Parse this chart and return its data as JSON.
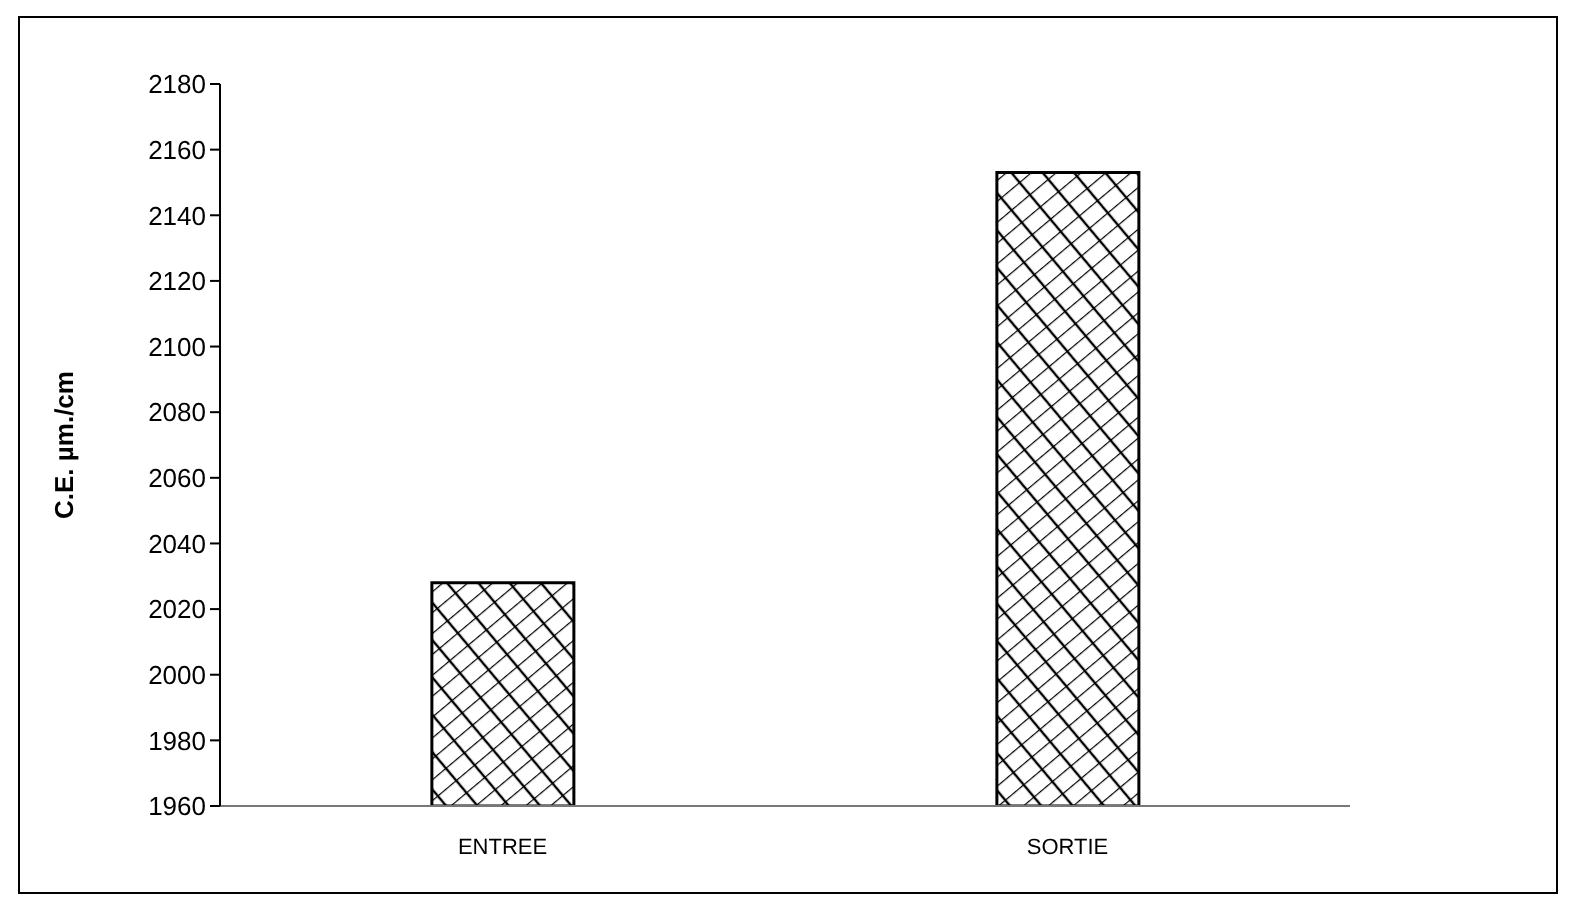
{
  "chart_data": {
    "type": "bar",
    "ylabel": "C.E. µm./cm",
    "categories": [
      "ENTREE",
      "SORTIE"
    ],
    "values": [
      2028,
      2153
    ],
    "color": "#000000",
    "ylim": [
      1960,
      2180
    ],
    "yticks": [
      1960,
      1980,
      2000,
      2020,
      2040,
      2060,
      2080,
      2100,
      2120,
      2140,
      2160,
      2180
    ],
    "grid": false,
    "legend": false
  }
}
